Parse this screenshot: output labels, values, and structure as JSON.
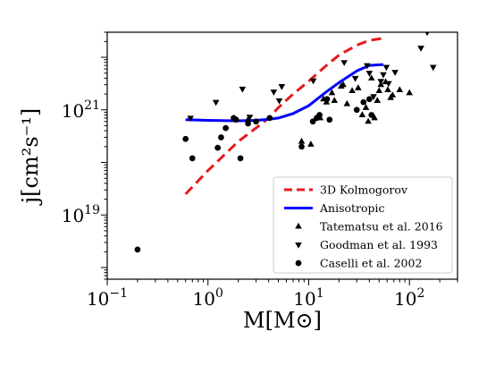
{
  "chart_data": {
    "type": "scatter",
    "title": "",
    "xlabel": "M[M⊙]",
    "ylabel": "j[cm²s⁻¹]",
    "x_scale": "log",
    "y_scale": "log",
    "xlim": [
      0.1,
      300
    ],
    "ylim": [
      6e+17,
      3e+22
    ],
    "grid": false,
    "legend_position": "bottom-right",
    "x_ticks": [
      {
        "value": 0.1,
        "base": "10",
        "exp": "−1"
      },
      {
        "value": 1,
        "base": "10",
        "exp": "0"
      },
      {
        "value": 10,
        "base": "10",
        "exp": "1"
      },
      {
        "value": 100,
        "base": "10",
        "exp": "2"
      }
    ],
    "y_ticks": [
      {
        "value": 1e+19,
        "base": "10",
        "exp": "19"
      },
      {
        "value": 1e+21,
        "base": "10",
        "exp": "21"
      }
    ],
    "series": [
      {
        "name": "3D Kolmogorov",
        "kind": "line",
        "style": "dashed",
        "color": "#e41a1c",
        "x": [
          0.6,
          1,
          2,
          3,
          4,
          5,
          7,
          10,
          15,
          20,
          30,
          40,
          55
        ],
        "y": [
          2.5e+19,
          7e+19,
          2.5e+20,
          4.5e+20,
          7e+20,
          1.1e+21,
          2e+21,
          3.5e+21,
          7e+21,
          1.1e+22,
          1.7e+22,
          2.1e+22,
          2.3e+22
        ]
      },
      {
        "name": "Anisotropic",
        "kind": "line",
        "style": "solid",
        "color": "#0000ff",
        "x": [
          0.6,
          1,
          2,
          3,
          4,
          5,
          7,
          10,
          15,
          20,
          30,
          40,
          55
        ],
        "y": [
          6.5e+20,
          6.3e+20,
          6.2e+20,
          6.3e+20,
          6.6e+20,
          7e+20,
          8.5e+20,
          1.2e+21,
          2.2e+21,
          3.3e+21,
          5.5e+21,
          7e+21,
          7.3e+21
        ]
      },
      {
        "name": "Tatematsu et al. 2016",
        "kind": "scatter",
        "marker": "triangle-up",
        "color": "#000000",
        "x": [
          2.5,
          8.5,
          10.5,
          13,
          14,
          15,
          17,
          18,
          21,
          22,
          24,
          27,
          31,
          34,
          37,
          39,
          42,
          45,
          48,
          50,
          52,
          58,
          61,
          65,
          68,
          80,
          100
        ],
        "y": [
          6.5e+20,
          2.5e+20,
          2.2e+20,
          7e+20,
          1.6e+21,
          1.4e+21,
          2.1e+21,
          1.5e+21,
          2.8e+21,
          3e+21,
          1.3e+21,
          2.3e+21,
          2.6e+21,
          8e+20,
          1.1e+21,
          6e+20,
          4e+21,
          7e+20,
          1.5e+21,
          2.3e+21,
          3e+21,
          3.4e+21,
          2.4e+21,
          1.7e+21,
          1.9e+21,
          2.4e+21,
          2.1e+21
        ]
      },
      {
        "name": "Goodman et al. 1993",
        "kind": "scatter",
        "marker": "triangle-down",
        "color": "#000000",
        "x": [
          0.67,
          1.2,
          2.2,
          2.6,
          4.5,
          5.1,
          5.4,
          11.1,
          22.5,
          29,
          38,
          40,
          44,
          52,
          55,
          59,
          62,
          72,
          130,
          150,
          172
        ],
        "y": [
          7e+20,
          1.4e+21,
          2.5e+21,
          7.3e+20,
          2.2e+21,
          1.5e+21,
          2.8e+21,
          3.6e+21,
          8e+21,
          4e+21,
          7e+21,
          5e+21,
          1.8e+21,
          3.5e+21,
          4.7e+21,
          6.5e+21,
          3.2e+21,
          5.2e+21,
          1.5e+22,
          3e+22,
          6.5e+21
        ]
      },
      {
        "name": "Caselli et al. 2002",
        "kind": "scatter",
        "marker": "circle",
        "color": "#000000",
        "x": [
          0.2,
          0.6,
          0.7,
          1.25,
          1.35,
          1.5,
          1.8,
          1.9,
          2.1,
          2.5,
          3.0,
          4.1,
          8.5,
          11,
          12,
          12.8,
          15.2,
          16.1,
          30,
          35,
          40,
          42
        ],
        "y": [
          2.2e+18,
          2.8e+20,
          1.2e+20,
          1.9e+20,
          3e+20,
          4.5e+20,
          7e+20,
          6.5e+20,
          1.2e+20,
          5.5e+20,
          6e+20,
          7e+20,
          2e+20,
          6e+20,
          7e+20,
          8e+20,
          1.6e+21,
          6.5e+20,
          1e+21,
          1.4e+21,
          1.6e+21,
          8e+20
        ]
      }
    ]
  }
}
